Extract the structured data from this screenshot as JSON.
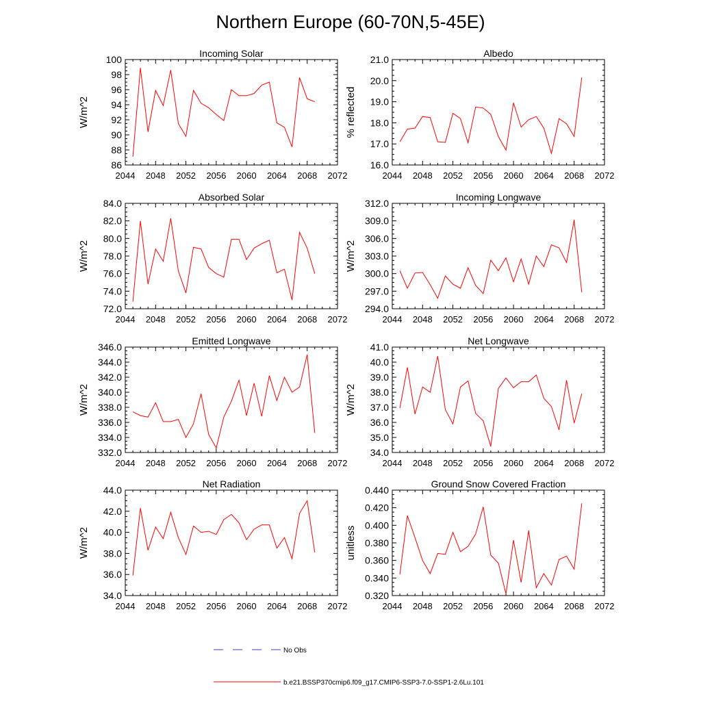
{
  "figure_title": "Northern Europe (60-70N,5-45E)",
  "legend": {
    "entries": [
      {
        "label": "No Obs",
        "color": "#3b3bcc",
        "style": "dashed"
      },
      {
        "label": "b.e21.BSSP370cmip6.f09_g17.CMIP6-SSP3-7.0-SSP1-2.6Lu.101",
        "color": "#ff0000",
        "style": "solid"
      }
    ]
  },
  "chart_data": [
    {
      "type": "line",
      "title": "Incoming Solar",
      "ylabel": "W/m^2",
      "xlim": [
        2044,
        2072
      ],
      "ylim": [
        86,
        100
      ],
      "xticks": [
        "2044",
        "2048",
        "2052",
        "2056",
        "2060",
        "2064",
        "2068",
        "2072"
      ],
      "yticks": [
        "86",
        "88",
        "90",
        "92",
        "94",
        "96",
        "98",
        "100"
      ],
      "x": [
        2045,
        2046,
        2047,
        2048,
        2049,
        2050,
        2051,
        2052,
        2053,
        2054,
        2055,
        2056,
        2057,
        2058,
        2059,
        2060,
        2061,
        2062,
        2063,
        2064,
        2065,
        2066,
        2067,
        2068,
        2069
      ],
      "series": [
        {
          "color": "#ff0000",
          "values": [
            87.1,
            98.9,
            90.4,
            95.9,
            93.9,
            98.6,
            91.5,
            89.8,
            95.9,
            94.2,
            93.6,
            92.7,
            91.9,
            96.0,
            95.2,
            95.2,
            95.5,
            96.6,
            97.0,
            91.6,
            91.0,
            88.4,
            97.6,
            94.8,
            94.4
          ]
        }
      ]
    },
    {
      "type": "line",
      "title": "Albedo",
      "ylabel": "% reflected",
      "xlim": [
        2044,
        2072
      ],
      "ylim": [
        16.0,
        21.0
      ],
      "xticks": [
        "2044",
        "2048",
        "2052",
        "2056",
        "2060",
        "2064",
        "2068",
        "2072"
      ],
      "yticks": [
        "16.0",
        "17.0",
        "18.0",
        "19.0",
        "20.0",
        "21.0"
      ],
      "x": [
        2045,
        2046,
        2047,
        2048,
        2049,
        2050,
        2051,
        2052,
        2053,
        2054,
        2055,
        2056,
        2057,
        2058,
        2059,
        2060,
        2061,
        2062,
        2063,
        2064,
        2065,
        2066,
        2067,
        2068,
        2069
      ],
      "series": [
        {
          "color": "#ff0000",
          "values": [
            17.1,
            17.7,
            17.75,
            18.3,
            18.25,
            17.1,
            17.07,
            18.45,
            18.2,
            17.05,
            18.75,
            18.7,
            18.4,
            17.35,
            16.7,
            18.95,
            17.8,
            18.15,
            18.3,
            17.75,
            16.55,
            18.2,
            17.95,
            17.35,
            20.15
          ]
        }
      ]
    },
    {
      "type": "line",
      "title": "Absorbed Solar",
      "ylabel": "W/m^2",
      "xlim": [
        2044,
        2072
      ],
      "ylim": [
        72.0,
        84.0
      ],
      "xticks": [
        "2044",
        "2048",
        "2052",
        "2056",
        "2060",
        "2064",
        "2068",
        "2072"
      ],
      "yticks": [
        "72.0",
        "74.0",
        "76.0",
        "78.0",
        "80.0",
        "82.0",
        "84.0"
      ],
      "x": [
        2045,
        2046,
        2047,
        2048,
        2049,
        2050,
        2051,
        2052,
        2053,
        2054,
        2055,
        2056,
        2057,
        2058,
        2059,
        2060,
        2061,
        2062,
        2063,
        2064,
        2065,
        2066,
        2067,
        2068,
        2069
      ],
      "series": [
        {
          "color": "#ff0000",
          "values": [
            72.8,
            82.0,
            74.8,
            78.8,
            77.4,
            82.3,
            76.3,
            73.8,
            79.0,
            78.8,
            76.7,
            76.0,
            75.6,
            79.9,
            79.9,
            77.6,
            78.9,
            79.4,
            79.8,
            76.1,
            76.5,
            73.0,
            80.7,
            78.9,
            76.0
          ]
        }
      ]
    },
    {
      "type": "line",
      "title": "Incoming Longwave",
      "ylabel": "W/m^2",
      "xlim": [
        2044,
        2072
      ],
      "ylim": [
        294.0,
        312.0
      ],
      "xticks": [
        "2044",
        "2048",
        "2052",
        "2056",
        "2060",
        "2064",
        "2068",
        "2072"
      ],
      "yticks": [
        "294.0",
        "297.0",
        "300.0",
        "303.0",
        "306.0",
        "309.0",
        "312.0"
      ],
      "x": [
        2045,
        2046,
        2047,
        2048,
        2049,
        2050,
        2051,
        2052,
        2053,
        2054,
        2055,
        2056,
        2057,
        2058,
        2059,
        2060,
        2061,
        2062,
        2063,
        2064,
        2065,
        2066,
        2067,
        2068,
        2069
      ],
      "series": [
        {
          "color": "#ff0000",
          "values": [
            300.5,
            297.5,
            300.1,
            300.2,
            298.1,
            295.8,
            299.6,
            298.2,
            297.5,
            301.0,
            298.0,
            296.6,
            302.3,
            300.5,
            302.7,
            298.6,
            302.5,
            298.2,
            303.0,
            301.2,
            304.9,
            304.4,
            301.9,
            309.2,
            296.8
          ]
        }
      ]
    },
    {
      "type": "line",
      "title": "Emitted Longwave",
      "ylabel": "W/m^2",
      "xlim": [
        2044,
        2072
      ],
      "ylim": [
        332.0,
        346.0
      ],
      "xticks": [
        "2044",
        "2048",
        "2052",
        "2056",
        "2060",
        "2064",
        "2068",
        "2072"
      ],
      "yticks": [
        "332.0",
        "334.0",
        "336.0",
        "338.0",
        "340.0",
        "342.0",
        "344.0",
        "346.0"
      ],
      "x": [
        2045,
        2046,
        2047,
        2048,
        2049,
        2050,
        2051,
        2052,
        2053,
        2054,
        2055,
        2056,
        2057,
        2058,
        2059,
        2060,
        2061,
        2062,
        2063,
        2064,
        2065,
        2066,
        2067,
        2068,
        2069
      ],
      "series": [
        {
          "color": "#ff0000",
          "values": [
            337.4,
            336.9,
            336.7,
            338.6,
            336.1,
            336.1,
            336.4,
            334.0,
            335.8,
            339.8,
            334.4,
            332.6,
            336.7,
            338.8,
            341.6,
            336.9,
            341.2,
            336.8,
            342.2,
            338.9,
            342.0,
            340.0,
            340.7,
            345.0,
            334.6
          ]
        }
      ]
    },
    {
      "type": "line",
      "title": "Net Longwave",
      "ylabel": "W/m^2",
      "xlim": [
        2044,
        2072
      ],
      "ylim": [
        34.0,
        41.0
      ],
      "xticks": [
        "2044",
        "2048",
        "2052",
        "2056",
        "2060",
        "2064",
        "2068",
        "2072"
      ],
      "yticks": [
        "34.0",
        "35.0",
        "36.0",
        "37.0",
        "38.0",
        "39.0",
        "40.0",
        "41.0"
      ],
      "x": [
        2045,
        2046,
        2047,
        2048,
        2049,
        2050,
        2051,
        2052,
        2053,
        2054,
        2055,
        2056,
        2057,
        2058,
        2059,
        2060,
        2061,
        2062,
        2063,
        2064,
        2065,
        2066,
        2067,
        2068,
        2069
      ],
      "series": [
        {
          "color": "#ff0000",
          "values": [
            36.95,
            39.65,
            36.55,
            38.35,
            38.0,
            40.4,
            36.85,
            35.9,
            38.35,
            38.75,
            36.6,
            36.1,
            34.4,
            38.25,
            38.95,
            38.3,
            38.7,
            38.7,
            39.15,
            37.6,
            37.05,
            35.5,
            38.8,
            35.95,
            37.9
          ]
        }
      ]
    },
    {
      "type": "line",
      "title": "Net Radiation",
      "ylabel": "W/m^2",
      "xlim": [
        2044,
        2072
      ],
      "ylim": [
        34.0,
        44.0
      ],
      "xticks": [
        "2044",
        "2048",
        "2052",
        "2056",
        "2060",
        "2064",
        "2068",
        "2072"
      ],
      "yticks": [
        "34.0",
        "36.0",
        "38.0",
        "40.0",
        "42.0",
        "44.0"
      ],
      "x": [
        2045,
        2046,
        2047,
        2048,
        2049,
        2050,
        2051,
        2052,
        2053,
        2054,
        2055,
        2056,
        2057,
        2058,
        2059,
        2060,
        2061,
        2062,
        2063,
        2064,
        2065,
        2066,
        2067,
        2068,
        2069
      ],
      "series": [
        {
          "color": "#ff0000",
          "values": [
            35.9,
            42.3,
            38.3,
            40.5,
            39.4,
            41.9,
            39.5,
            37.9,
            40.6,
            40.0,
            40.1,
            39.8,
            41.2,
            41.7,
            40.9,
            39.3,
            40.3,
            40.7,
            40.7,
            38.5,
            39.5,
            37.5,
            41.8,
            43.0,
            38.1
          ]
        }
      ]
    },
    {
      "type": "line",
      "title": "Ground Snow Covered Fraction",
      "ylabel": "unitless",
      "xlim": [
        2044,
        2072
      ],
      "ylim": [
        0.32,
        0.44
      ],
      "xticks": [
        "2044",
        "2048",
        "2052",
        "2056",
        "2060",
        "2064",
        "2068",
        "2072"
      ],
      "yticks": [
        "0.320",
        "0.340",
        "0.360",
        "0.380",
        "0.400",
        "0.420",
        "0.440"
      ],
      "x": [
        2045,
        2046,
        2047,
        2048,
        2049,
        2050,
        2051,
        2052,
        2053,
        2054,
        2055,
        2056,
        2057,
        2058,
        2059,
        2060,
        2061,
        2062,
        2063,
        2064,
        2065,
        2066,
        2067,
        2068,
        2069
      ],
      "series": [
        {
          "color": "#ff0000",
          "values": [
            0.344,
            0.411,
            0.386,
            0.36,
            0.345,
            0.368,
            0.367,
            0.392,
            0.37,
            0.376,
            0.39,
            0.421,
            0.366,
            0.357,
            0.322,
            0.383,
            0.335,
            0.394,
            0.329,
            0.345,
            0.332,
            0.361,
            0.365,
            0.35,
            0.425
          ]
        }
      ]
    }
  ]
}
